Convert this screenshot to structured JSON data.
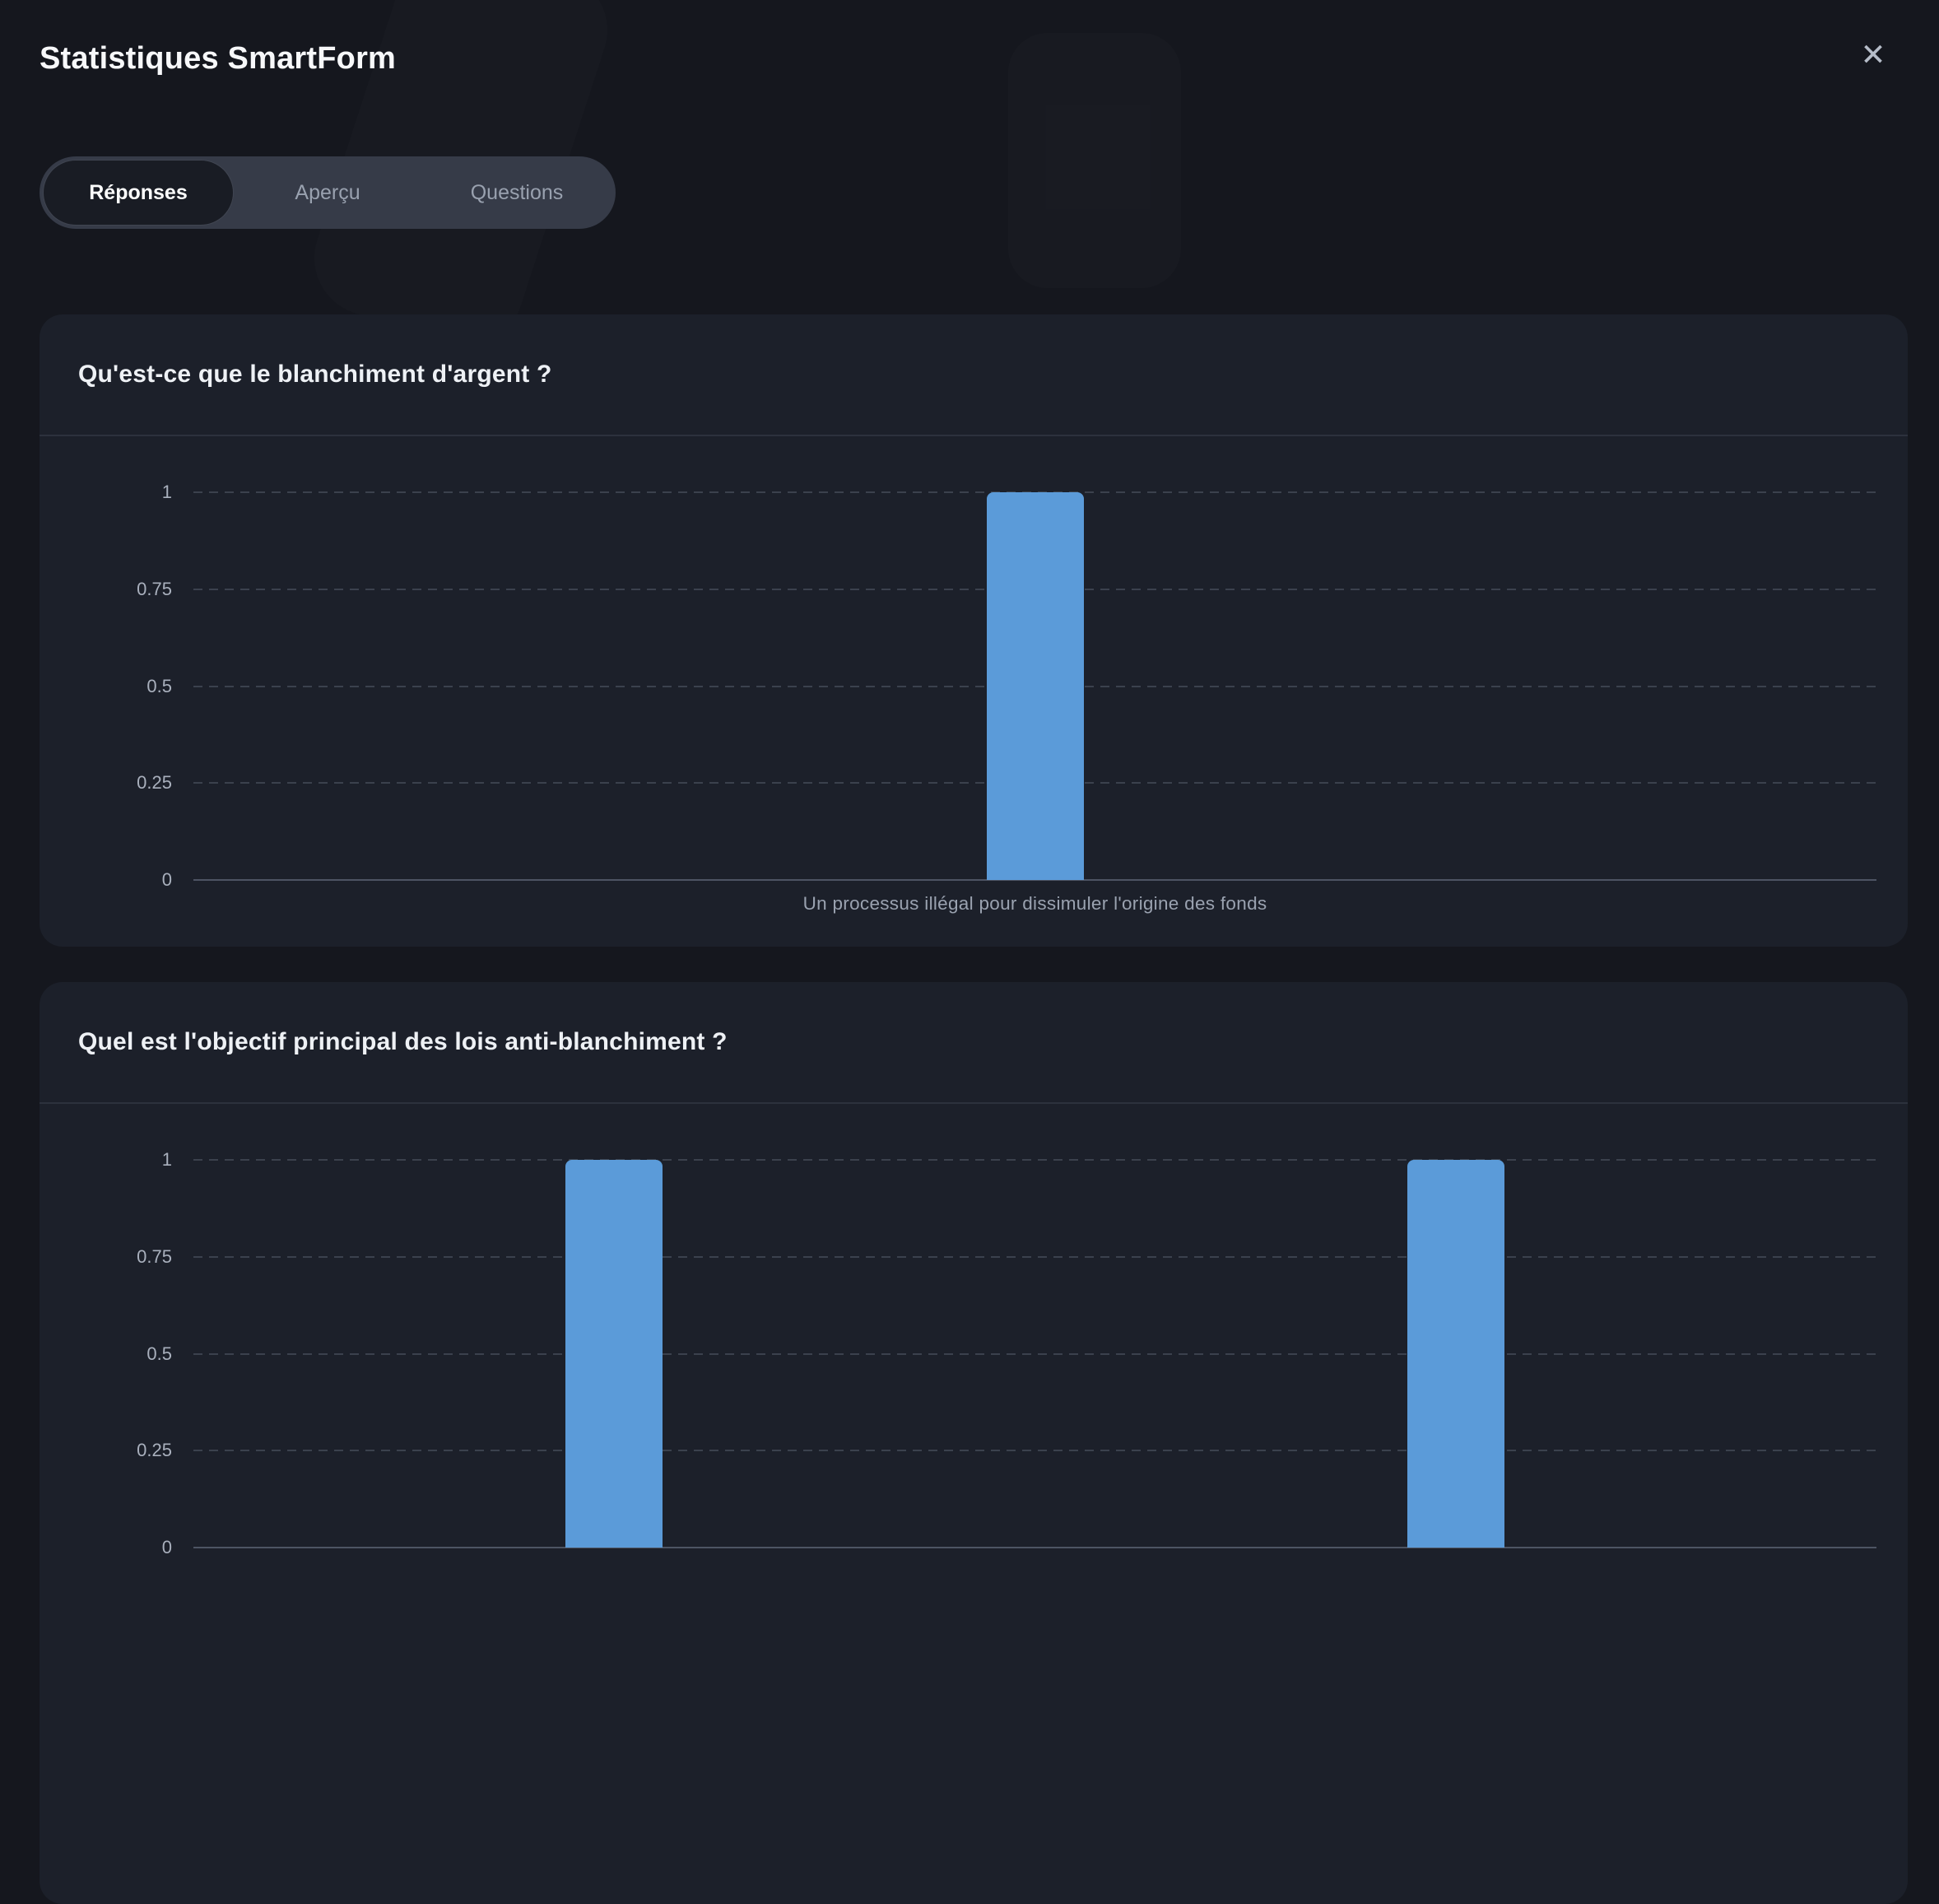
{
  "header": {
    "title": "Statistiques SmartForm",
    "close_icon": "✕"
  },
  "tabs": [
    {
      "label": "Réponses",
      "active": true
    },
    {
      "label": "Aperçu",
      "active": false
    },
    {
      "label": "Questions",
      "active": false
    }
  ],
  "colors": {
    "accent_bar": "#5b9bd9",
    "page_bg": "#15171e",
    "card_bg": "#1c202a",
    "tabbar_bg": "#363b48",
    "active_tab_bg": "#191c24"
  },
  "chart_data": [
    {
      "type": "bar",
      "title": "Qu'est-ce que le blanchiment d'argent ?",
      "categories": [
        "Un processus illégal pour dissimuler l'origine des fonds"
      ],
      "values": [
        1
      ],
      "xlabel": "",
      "ylabel": "",
      "ylim": [
        0,
        1
      ],
      "yticks": [
        0,
        0.25,
        0.5,
        0.75,
        1
      ],
      "grid": true,
      "legend": false,
      "bar_color": "#5b9bd9"
    },
    {
      "type": "bar",
      "title": "Quel est l'objectif principal des lois anti-blanchiment ?",
      "categories": [
        "",
        ""
      ],
      "values": [
        1,
        1
      ],
      "xlabel": "",
      "ylabel": "",
      "ylim": [
        0,
        1
      ],
      "yticks": [
        0,
        0.25,
        0.5,
        0.75,
        1
      ],
      "grid": true,
      "legend": false,
      "bar_color": "#5b9bd9"
    }
  ]
}
